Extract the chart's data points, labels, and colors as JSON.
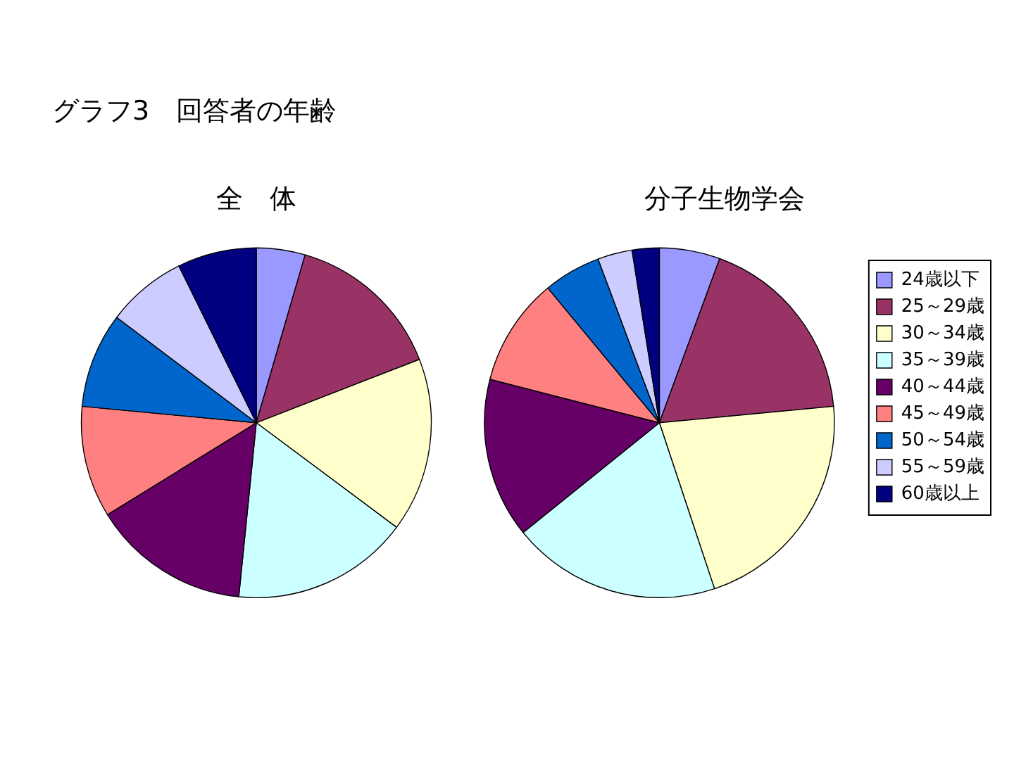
{
  "chart_data": [
    {
      "type": "pie",
      "title": "全　体",
      "annotations": [
        "グラフ3　回答者の年齢"
      ],
      "categories": [
        null,
        null,
        null,
        null,
        null,
        null,
        null,
        null,
        null
      ],
      "values": [
        4.5,
        14.6,
        16.1,
        16.4,
        14.6,
        10.3,
        8.8,
        7.4,
        7.3
      ],
      "colors": [
        "#9999ff",
        "#993366",
        "#ffffcc",
        "#ccffff",
        "#660066",
        "#ff8080",
        "#0066cc",
        "#ccccff",
        "#000080"
      ],
      "legend": false
    },
    {
      "type": "pie",
      "title": "分子生物学会",
      "categories": [
        "24歳以下",
        "25～29歳",
        "30～34歳",
        "35～39歳",
        "40～44歳",
        "45～49歳",
        "50～54歳",
        "55～59歳",
        "60歳以上"
      ],
      "values": [
        5.6,
        17.9,
        21.4,
        19.3,
        14.8,
        10.0,
        5.3,
        3.2,
        2.5
      ],
      "colors": [
        "#9999ff",
        "#993366",
        "#ffffcc",
        "#ccffff",
        "#660066",
        "#ff8080",
        "#0066cc",
        "#ccccff",
        "#000080"
      ],
      "legend": "right"
    }
  ]
}
